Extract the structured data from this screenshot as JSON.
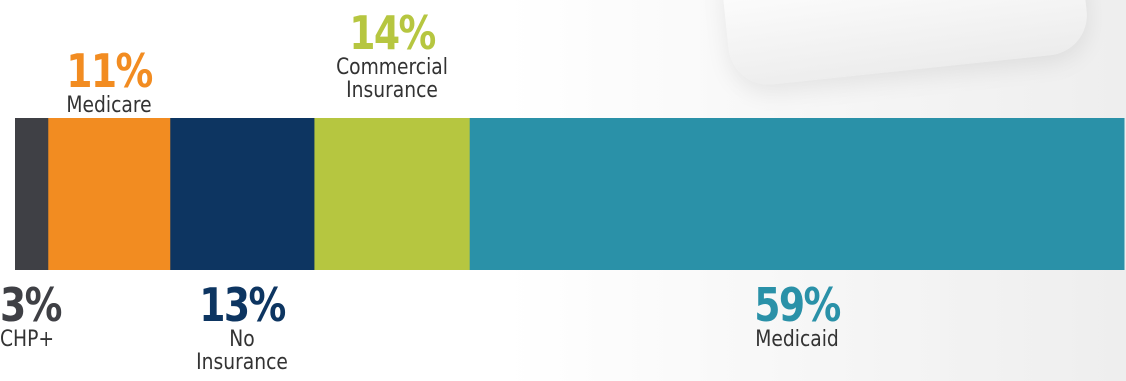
{
  "chart_data": {
    "type": "bar",
    "orientation": "horizontal-stacked",
    "segments": [
      {
        "name": "CHP+",
        "value": 3,
        "percent_label": "3%",
        "color": "#3f4045",
        "label_position": "below"
      },
      {
        "name": "Medicare",
        "value": 11,
        "percent_label": "11%",
        "color": "#f28c21",
        "label_position": "above"
      },
      {
        "name": "No\nInsurance",
        "value": 13,
        "percent_label": "13%",
        "color": "#0d3561",
        "label_position": "below"
      },
      {
        "name": "Commercial\nInsurance",
        "value": 14,
        "percent_label": "14%",
        "color": "#b6c640",
        "label_position": "above"
      },
      {
        "name": "Medicaid",
        "value": 59,
        "percent_label": "59%",
        "color": "#2a91a8",
        "label_position": "below"
      }
    ],
    "total": 100
  }
}
